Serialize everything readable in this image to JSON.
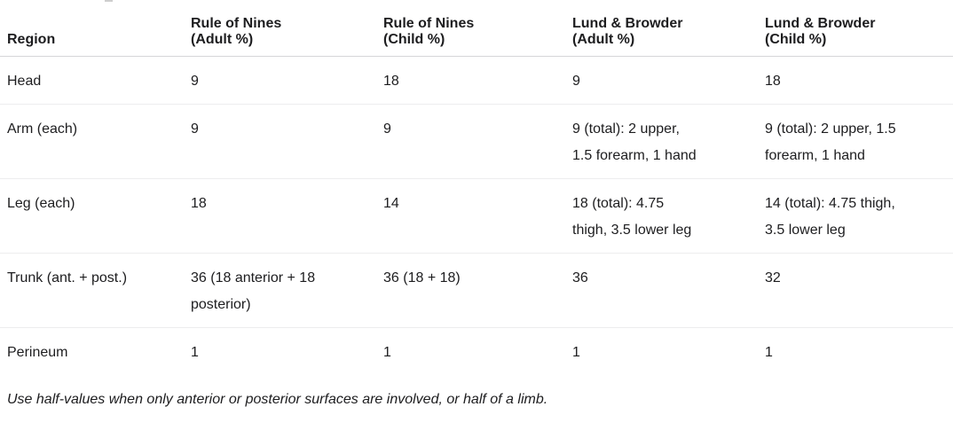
{
  "table": {
    "headers": [
      {
        "line1": "Region",
        "line2": ""
      },
      {
        "line1": "Rule of Nines",
        "line2": "(Adult %)"
      },
      {
        "line1": "Rule of Nines",
        "line2": "(Child %)"
      },
      {
        "line1": "Lund & Browder",
        "line2": "(Adult %)"
      },
      {
        "line1": "Lund & Browder",
        "line2": "(Child %)"
      }
    ],
    "rows": [
      {
        "cells": [
          "Head",
          "9",
          "18",
          "9",
          "18"
        ]
      },
      {
        "cells": [
          "Arm (each)",
          "9",
          "9",
          "9 (total): 2 upper, 1.5 forearm, 1 hand",
          "9 (total): 2 upper, 1.5 forearm, 1 hand"
        ]
      },
      {
        "cells": [
          "Leg (each)",
          "18",
          "14",
          "18 (total): 4.75 thigh, 3.5 lower leg",
          "14 (total): 4.75 thigh, 3.5 lower leg"
        ]
      },
      {
        "cells": [
          "Trunk (ant. + post.)",
          "36 (18 anterior + 18 posterior)",
          "36 (18 + 18)",
          "36",
          "32"
        ]
      },
      {
        "cells": [
          "Perineum",
          "1",
          "1",
          "1",
          "1"
        ]
      }
    ],
    "footnote": "Use half-values when only anterior or posterior surfaces are involved, or half of a limb."
  },
  "colors": {
    "text": "#1d1d1f",
    "header_border": "#d6d6d8",
    "row_border": "#ededee",
    "background": "#ffffff"
  }
}
